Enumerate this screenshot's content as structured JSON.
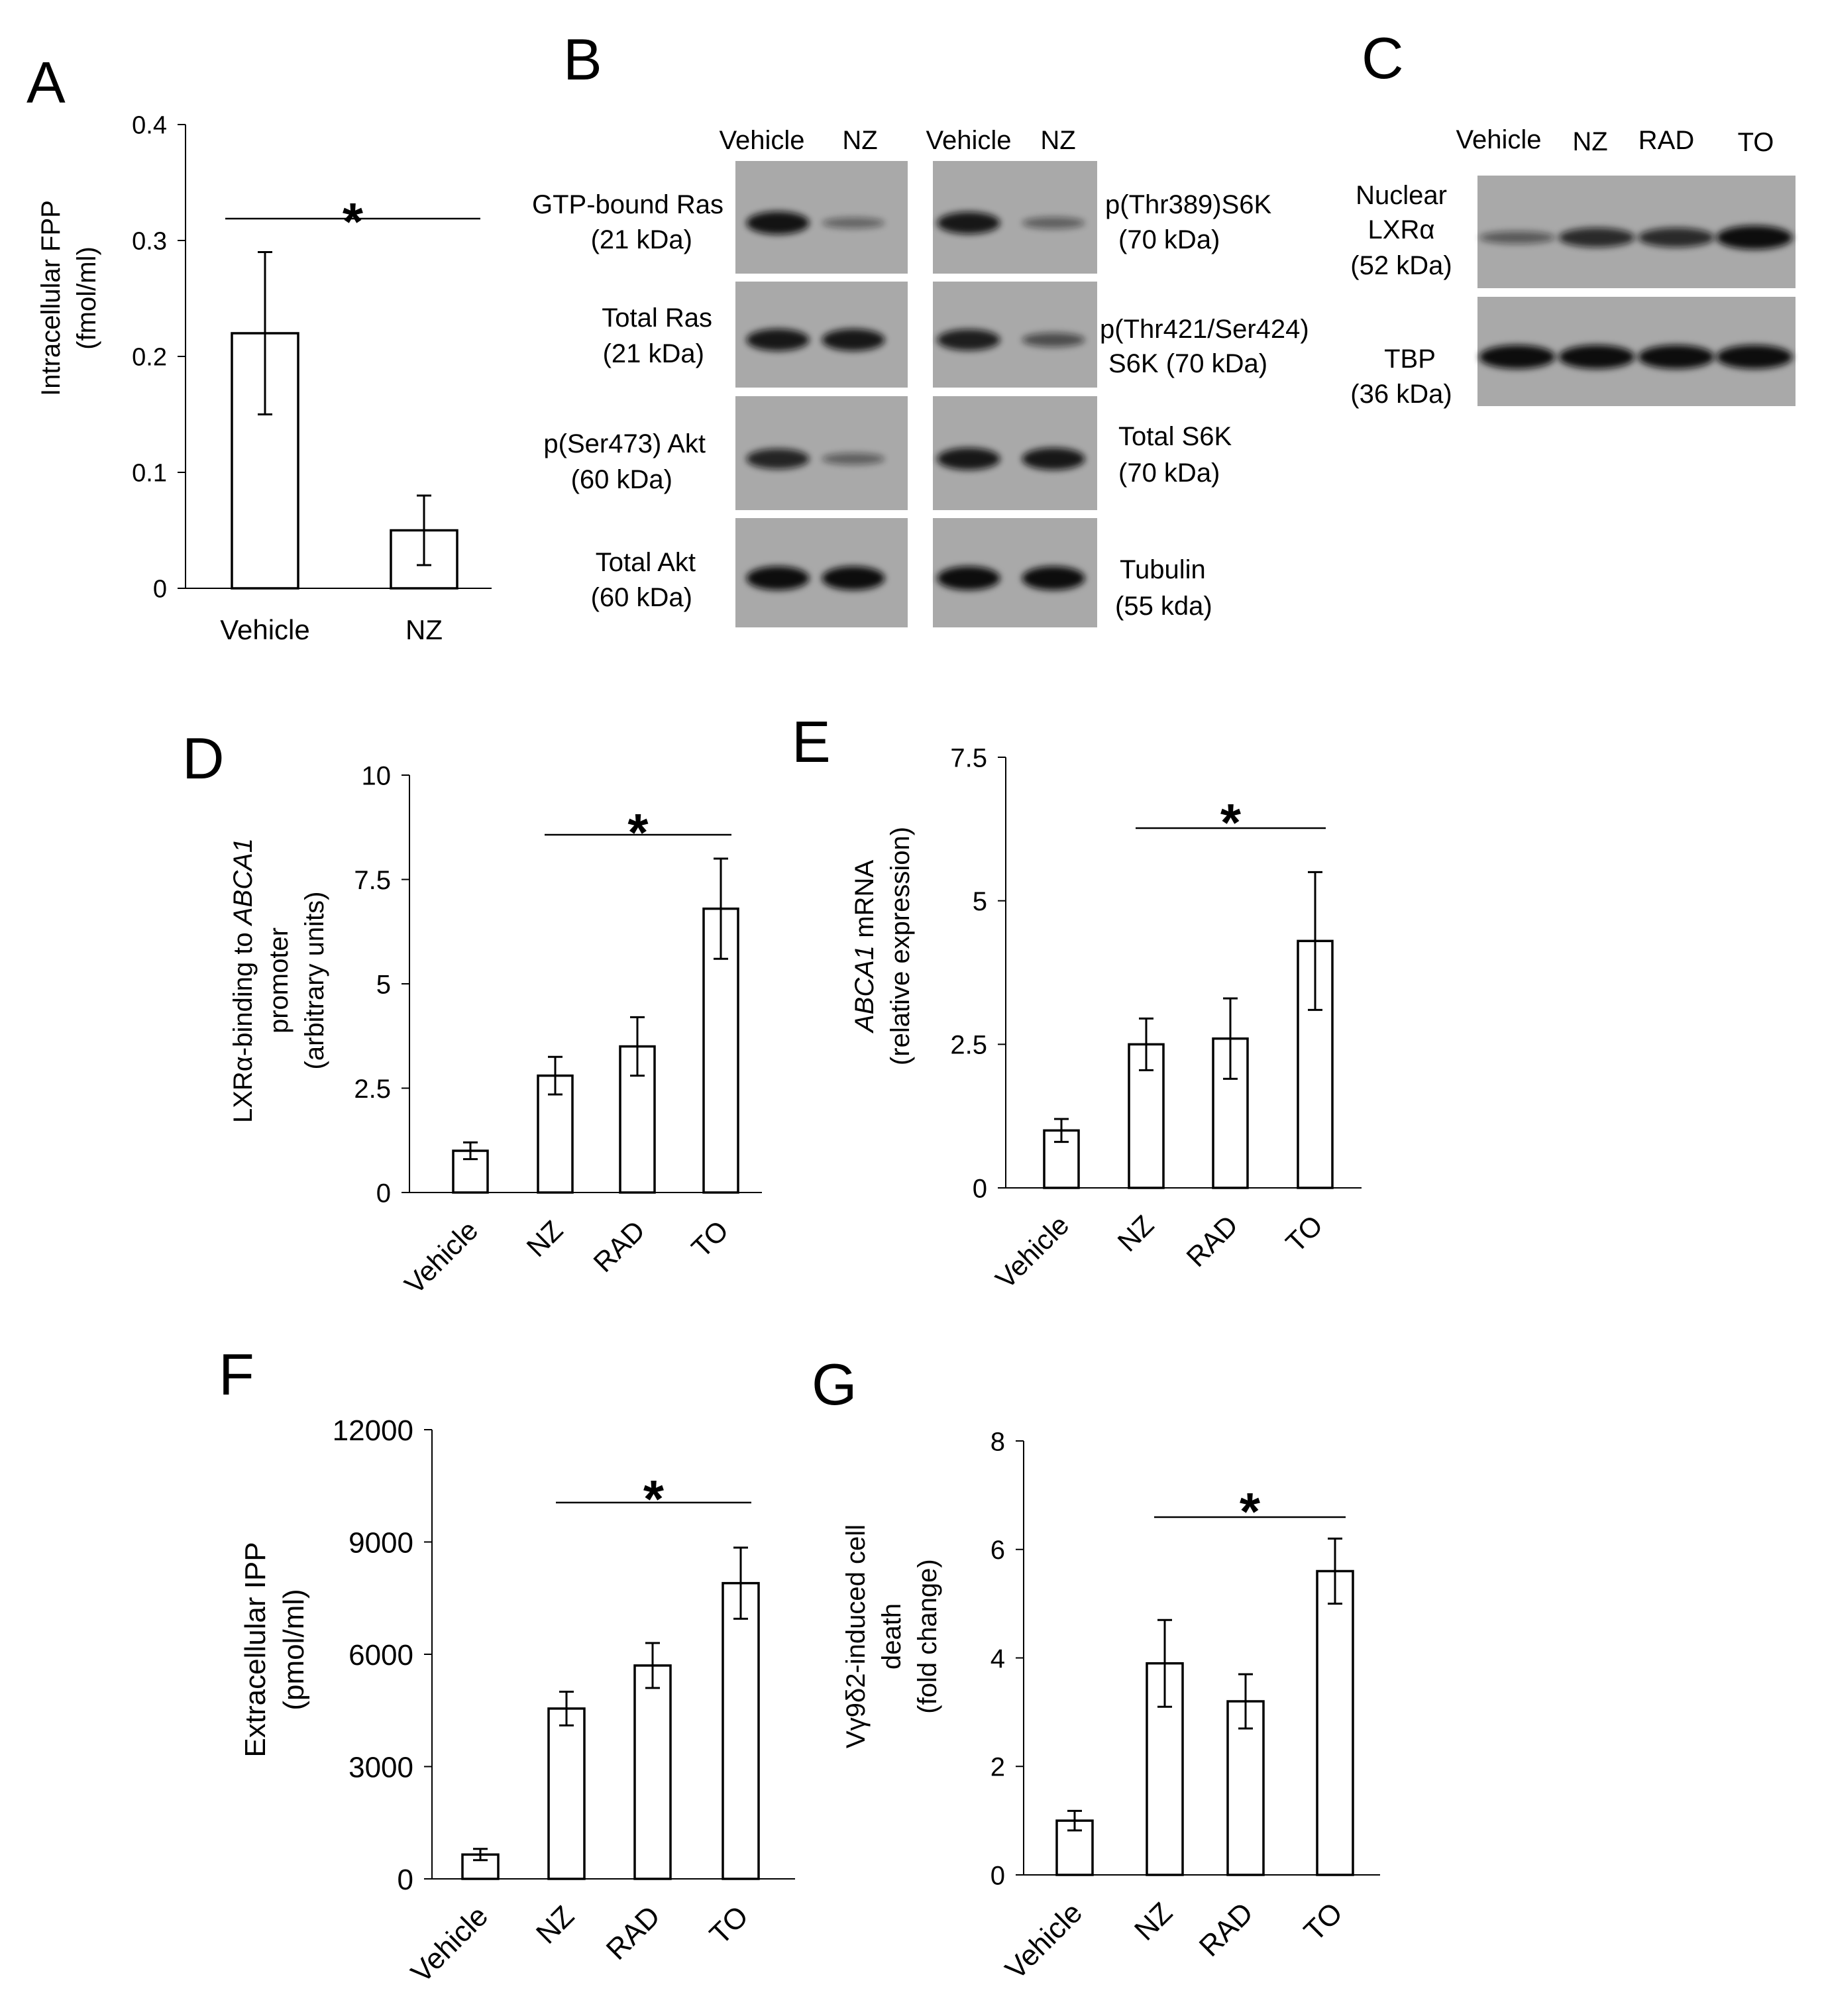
{
  "panels": {
    "A": {
      "letter": "A",
      "ylabel_lines": [
        "Intracellular FPP",
        "(fmol/ml)"
      ],
      "yticks": [
        "0",
        "0.1",
        "0.2",
        "0.3",
        "0.4"
      ],
      "star": "*"
    },
    "B": {
      "letter": "B",
      "lane_labels": [
        "Vehicle",
        "NZ"
      ],
      "left_labels": [
        [
          "GTP-bound Ras",
          "(21 kDa)"
        ],
        [
          "Total Ras",
          "(21 kDa)"
        ],
        [
          "p(Ser473) Akt",
          "(60 kDa)"
        ],
        [
          "Total Akt",
          "(60 kDa)"
        ]
      ],
      "right_labels": [
        [
          "p(Thr389)S6K",
          "(70 kDa)"
        ],
        [
          "p(Thr421/Ser424)",
          "S6K (70 kDa)"
        ],
        [
          "Total S6K",
          "(70 kDa)"
        ],
        [
          "Tubulin",
          "(55 kda)"
        ]
      ]
    },
    "C": {
      "letter": "C",
      "lane_labels": [
        "Vehicle",
        "NZ",
        "RAD",
        "TO"
      ],
      "row_labels": [
        [
          "Nuclear",
          "LXRα",
          "(52 kDa)"
        ],
        [
          "TBP",
          "(36 kDa)"
        ]
      ]
    },
    "D": {
      "letter": "D",
      "ylabel_lines": [
        "LXRα-binding to ABCA1",
        "promoter",
        "(arbitrary units)"
      ],
      "yticks": [
        "0",
        "2.5",
        "5",
        "7.5",
        "10"
      ],
      "star": "*"
    },
    "E": {
      "letter": "E",
      "ylabel_lines": [
        "ABCA1 mRNA",
        "(relative expression)"
      ],
      "yticks": [
        "0",
        "2.5",
        "5",
        "7.5"
      ],
      "star": "*"
    },
    "F": {
      "letter": "F",
      "ylabel_lines": [
        "Extracellular IPP",
        "(pmol/ml)"
      ],
      "yticks": [
        "0",
        "3000",
        "6000",
        "9000",
        "12000"
      ],
      "star": "*"
    },
    "G": {
      "letter": "G",
      "ylabel_lines": [
        "Vγ9δ2-induced cell",
        "death",
        "(fold change)"
      ],
      "yticks": [
        "0",
        "2",
        "4",
        "6",
        "8"
      ],
      "star": "*"
    }
  },
  "chart_data": [
    {
      "panel": "A",
      "type": "bar",
      "categories": [
        "Vehicle",
        "NZ"
      ],
      "values": [
        0.22,
        0.05
      ],
      "errors": [
        0.07,
        0.03
      ],
      "ylim": [
        0,
        0.4
      ],
      "ylabel": "Intracellular FPP (fmol/ml)",
      "significance": {
        "label": "*",
        "from": 0,
        "to": 1
      }
    },
    {
      "panel": "D",
      "type": "bar",
      "categories": [
        "Vehicle",
        "NZ",
        "RAD",
        "TO"
      ],
      "values": [
        1.0,
        2.8,
        3.5,
        6.8
      ],
      "errors": [
        0.2,
        0.45,
        0.7,
        1.2
      ],
      "ylim": [
        0,
        10
      ],
      "ylabel": "LXRα-binding to ABCA1 promoter (arbitrary units)",
      "significance": {
        "label": "*",
        "from": 1,
        "to": 3
      }
    },
    {
      "panel": "E",
      "type": "bar",
      "categories": [
        "Vehicle",
        "NZ",
        "RAD",
        "TO"
      ],
      "values": [
        1.0,
        2.5,
        2.6,
        4.3
      ],
      "errors": [
        0.2,
        0.45,
        0.7,
        1.2
      ],
      "ylim": [
        0,
        7.5
      ],
      "ylabel": "ABCA1 mRNA (relative expression)",
      "significance": {
        "label": "*",
        "from": 1,
        "to": 3
      }
    },
    {
      "panel": "F",
      "type": "bar",
      "categories": [
        "Vehicle",
        "NZ",
        "RAD",
        "TO"
      ],
      "values": [
        650,
        4550,
        5700,
        7900
      ],
      "errors": [
        150,
        450,
        600,
        950
      ],
      "ylim": [
        0,
        12000
      ],
      "ylabel": "Extracellular IPP (pmol/ml)",
      "significance": {
        "label": "*",
        "from": 1,
        "to": 3
      }
    },
    {
      "panel": "G",
      "type": "bar",
      "categories": [
        "Vehicle",
        "NZ",
        "RAD",
        "TO"
      ],
      "values": [
        1.0,
        3.9,
        3.2,
        5.6
      ],
      "errors": [
        0.18,
        0.8,
        0.5,
        0.6
      ],
      "ylim": [
        0,
        8
      ],
      "ylabel": "Vγ9δ2-induced cell death (fold change)",
      "significance": {
        "label": "*",
        "from": 1,
        "to": 3
      }
    }
  ],
  "blots": {
    "B_left": {
      "lanes": [
        "Vehicle",
        "NZ"
      ],
      "rows": [
        {
          "name": "GTP-bound Ras",
          "intensity": [
            0.95,
            0.25
          ]
        },
        {
          "name": "Total Ras",
          "intensity": [
            0.9,
            0.9
          ]
        },
        {
          "name": "p(Ser473) Akt",
          "intensity": [
            0.8,
            0.3
          ]
        },
        {
          "name": "Total Akt",
          "intensity": [
            1.0,
            1.0
          ]
        }
      ]
    },
    "B_right": {
      "lanes": [
        "Vehicle",
        "NZ"
      ],
      "rows": [
        {
          "name": "p(Thr389)S6K",
          "intensity": [
            0.9,
            0.3
          ]
        },
        {
          "name": "p(Thr421/Ser424) S6K",
          "intensity": [
            0.85,
            0.45
          ]
        },
        {
          "name": "Total S6K",
          "intensity": [
            0.9,
            0.9
          ]
        },
        {
          "name": "Tubulin",
          "intensity": [
            1.0,
            1.0
          ]
        }
      ]
    },
    "C": {
      "lanes": [
        "Vehicle",
        "NZ",
        "RAD",
        "TO"
      ],
      "rows": [
        {
          "name": "Nuclear LXRα",
          "intensity": [
            0.35,
            0.75,
            0.75,
            1.0
          ]
        },
        {
          "name": "TBP",
          "intensity": [
            1.0,
            1.0,
            1.0,
            1.0
          ]
        }
      ]
    }
  }
}
